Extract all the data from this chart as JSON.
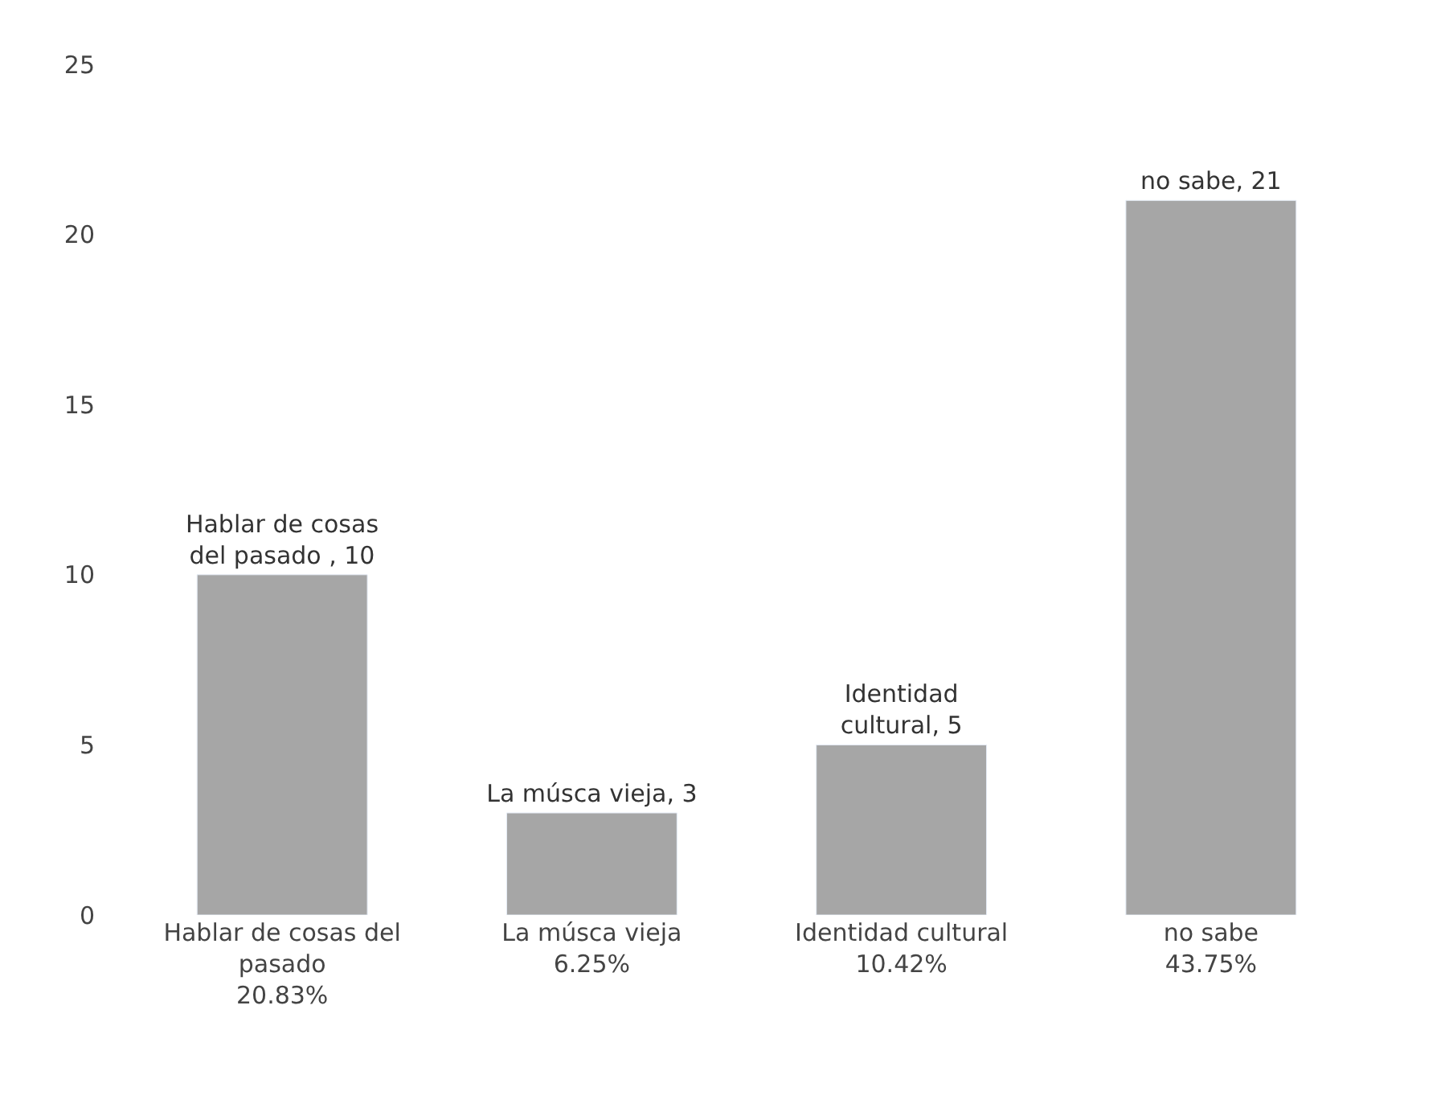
{
  "chart_data": {
    "type": "bar",
    "categories": [
      "Hablar de cosas del\npasado\n20.83%",
      "La músca vieja\n6.25%",
      "Identidad cultural\n10.42%",
      "no sabe\n43.75%"
    ],
    "values": [
      10,
      3,
      5,
      21
    ],
    "value_labels": [
      "Hablar de cosas\ndel pasado , 10",
      "La músca vieja, 3",
      "Identidad\ncultural, 5",
      "no sabe, 21"
    ],
    "color": "#a6a6a6",
    "ylim": [
      0,
      25
    ],
    "yticks": [
      0,
      5,
      10,
      15,
      20,
      25
    ]
  }
}
